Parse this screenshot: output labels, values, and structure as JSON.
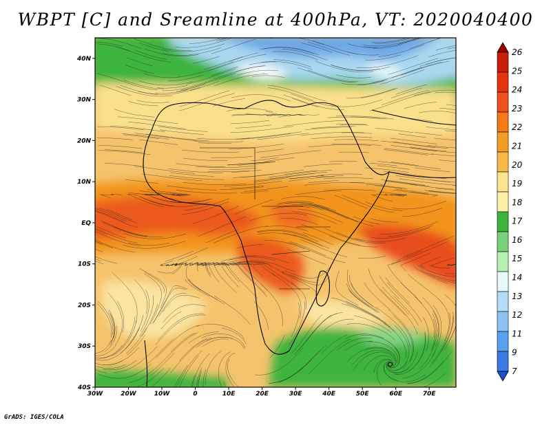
{
  "title": "WBPT [C] and Sreamline at 400hPa, VT: 2020040400",
  "footer": "GrADS: IGES/COLA",
  "map": {
    "variable": "WBPT [C]",
    "overlay": "Streamline",
    "level": "400hPa",
    "valid_time": "2020040400",
    "lon_range": [
      -30,
      78
    ],
    "lat_range": [
      -40,
      45
    ],
    "lat_ticks": [
      {
        "value": 40,
        "label": "40N"
      },
      {
        "value": 30,
        "label": "30N"
      },
      {
        "value": 20,
        "label": "20N"
      },
      {
        "value": 10,
        "label": "10N"
      },
      {
        "value": 0,
        "label": "EQ"
      },
      {
        "value": -10,
        "label": "10S"
      },
      {
        "value": -20,
        "label": "20S"
      },
      {
        "value": -30,
        "label": "30S"
      },
      {
        "value": -40,
        "label": "40S"
      }
    ],
    "lon_ticks": [
      {
        "value": -30,
        "label": "30W"
      },
      {
        "value": -20,
        "label": "20W"
      },
      {
        "value": -10,
        "label": "10W"
      },
      {
        "value": 0,
        "label": "0"
      },
      {
        "value": 10,
        "label": "10E"
      },
      {
        "value": 20,
        "label": "20E"
      },
      {
        "value": 30,
        "label": "30E"
      },
      {
        "value": 40,
        "label": "40E"
      },
      {
        "value": 50,
        "label": "50E"
      },
      {
        "value": 60,
        "label": "60E"
      },
      {
        "value": 70,
        "label": "70E"
      }
    ]
  },
  "colorbar": {
    "labels": [
      "26",
      "25",
      "24",
      "23",
      "22",
      "21",
      "20",
      "19",
      "18",
      "17",
      "16",
      "15",
      "14",
      "13",
      "12",
      "11",
      "9",
      "7"
    ],
    "colors": [
      "#a00000",
      "#c81e0a",
      "#e6320f",
      "#f0501e",
      "#f57a14",
      "#f59c26",
      "#fab946",
      "#fde48e",
      "#fff0a8",
      "#3cb43c",
      "#78d278",
      "#b4f0b4",
      "#e6fafa",
      "#b4dcf8",
      "#8cc3f5",
      "#5aa0f0",
      "#3c78e6",
      "#1e50d2"
    ]
  }
}
